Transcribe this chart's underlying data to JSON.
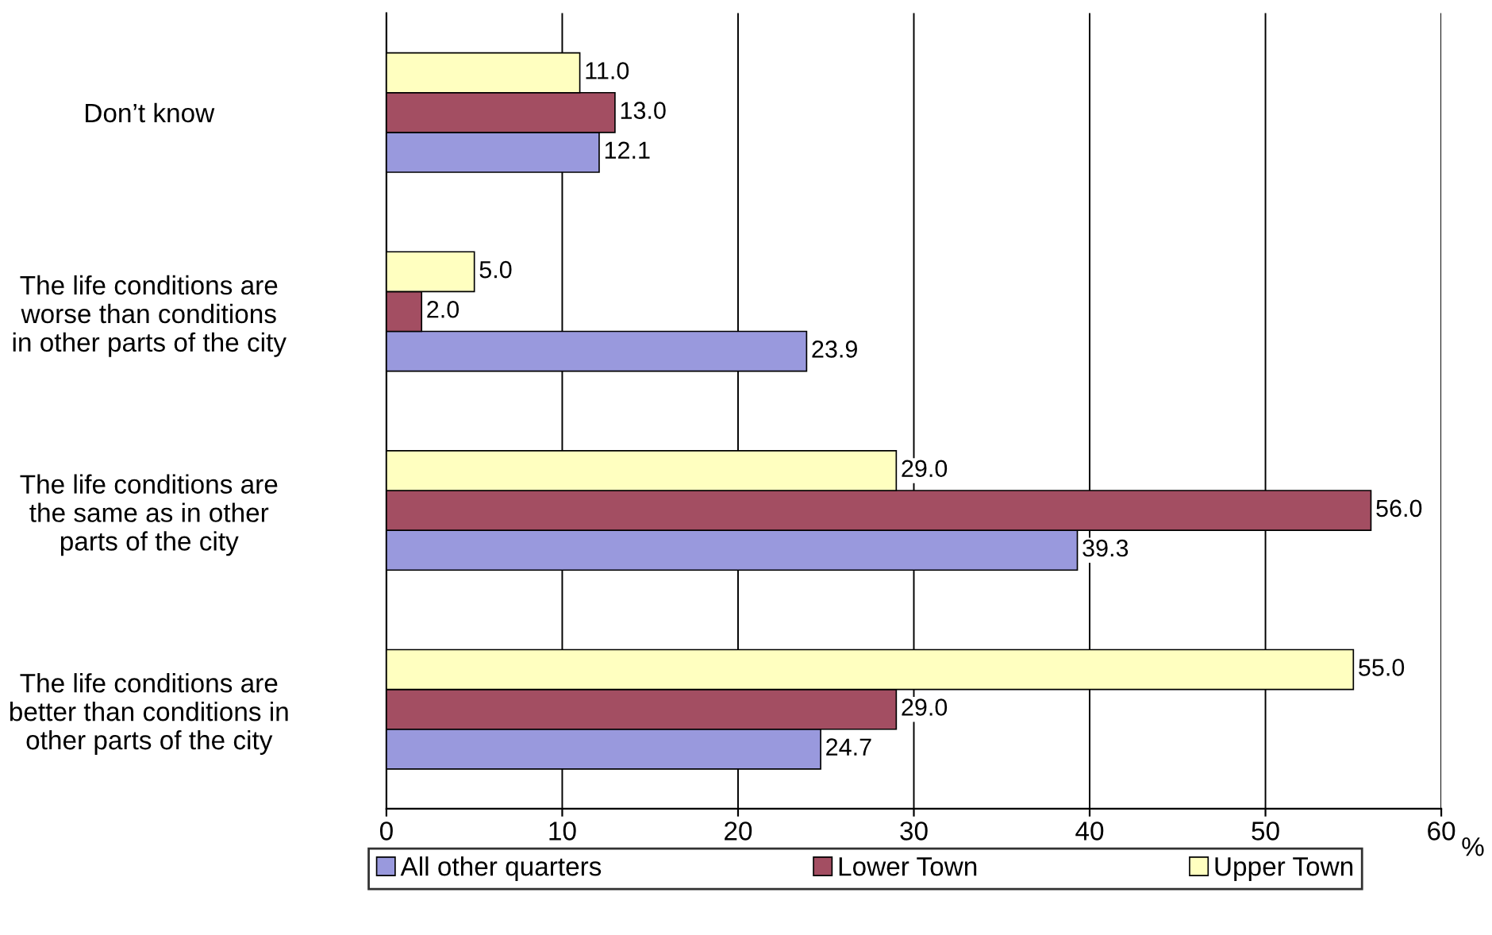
{
  "chart_data": {
    "type": "bar",
    "orientation": "horizontal",
    "xlabel": "%",
    "categories": [
      "Don’t know",
      "The life conditions are\nworse than conditions\nin other parts of the city",
      "The life conditions are\nthe same as in other\nparts of the city",
      "The life conditions are\nbetter than conditions in\nother parts of the city"
    ],
    "series": [
      {
        "name": "All other quarters",
        "color": "#9999dd",
        "values": [
          12.1,
          23.9,
          39.3,
          24.7
        ],
        "value_labels": [
          "12.1",
          "23.9",
          "39.3",
          "24.7"
        ]
      },
      {
        "name": "Lower Town",
        "color": "#a34e62",
        "values": [
          13.0,
          2.0,
          56.0,
          29.0
        ],
        "value_labels": [
          "13.0",
          "2.0",
          "56.0",
          "29.0"
        ]
      },
      {
        "name": "Upper Town",
        "color": "#ffffc0",
        "values": [
          11.0,
          5.0,
          29.0,
          55.0
        ],
        "value_labels": [
          "11.0",
          "5.0",
          "29.0",
          "55.0"
        ]
      }
    ],
    "xlim": [
      0,
      60
    ],
    "xticks": [
      0,
      10,
      20,
      30,
      40,
      50,
      60
    ],
    "grid": "x",
    "legend": "bottom"
  }
}
